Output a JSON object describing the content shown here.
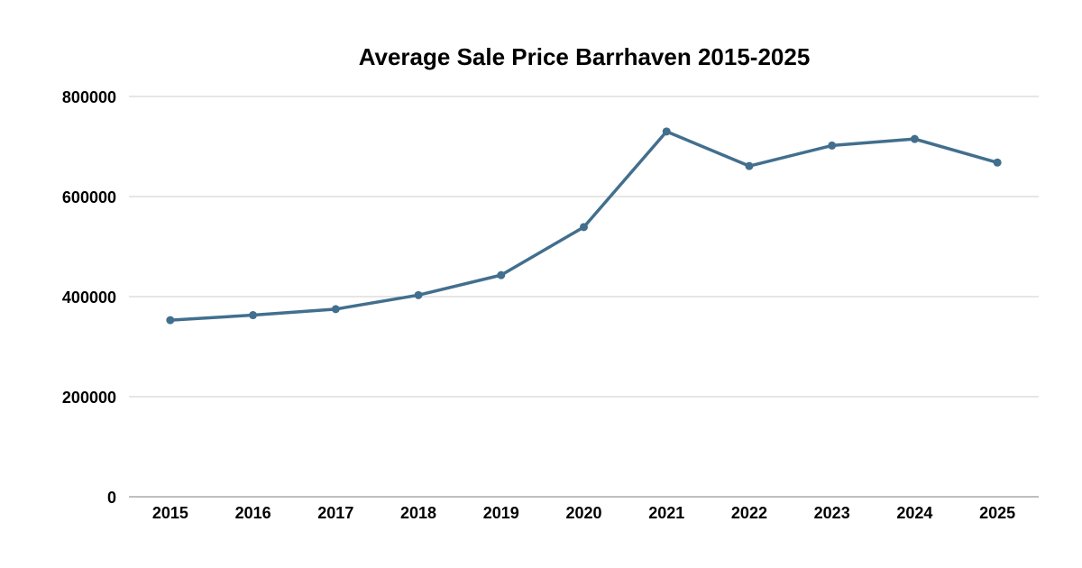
{
  "chart_data": {
    "type": "line",
    "title": "Average Sale Price Barrhaven 2015-2025",
    "categories": [
      "2015",
      "2016",
      "2017",
      "2018",
      "2019",
      "2020",
      "2021",
      "2022",
      "2023",
      "2024",
      "2025"
    ],
    "series": [
      {
        "values": [
          353000,
          363000,
          375000,
          403000,
          443000,
          539000,
          730000,
          661000,
          702000,
          715000,
          668000
        ],
        "color": "#426f8e"
      }
    ],
    "y_ticks": [
      "0",
      "200000",
      "400000",
      "600000",
      "800000"
    ],
    "ylim": [
      0,
      800000
    ],
    "xlabel": "",
    "ylabel": "",
    "grid": true,
    "legend": "none"
  }
}
